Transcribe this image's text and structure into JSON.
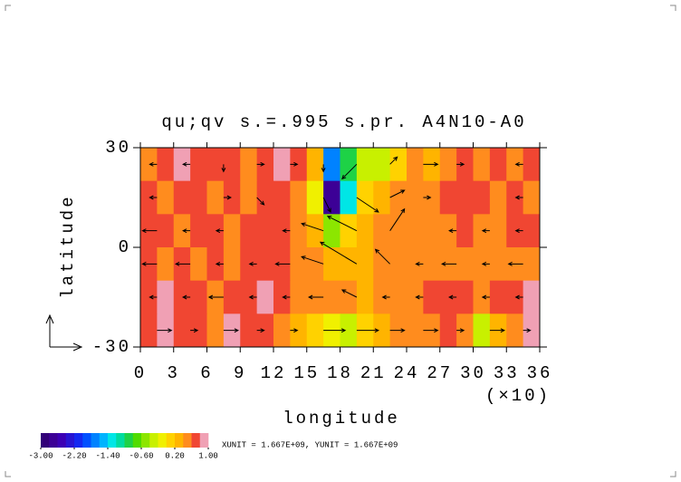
{
  "chart_data": {
    "type": "contour",
    "title": "qu;qv s.=.995 s.pr. A4N10-A0",
    "x_label": "longitude",
    "x_multiplier": "(×10)",
    "y_label": "latitude",
    "note": "XUNIT = 1.667E+09, YUNIT = 1.667E+09",
    "xlim": [
      0,
      36
    ],
    "ylim": [
      -30,
      30
    ],
    "xticks": [
      0,
      3,
      6,
      9,
      12,
      15,
      18,
      21,
      24,
      27,
      30,
      33,
      36
    ],
    "yticks": [
      -30,
      0,
      30
    ],
    "x_edges": [
      0,
      1.5,
      3,
      4.5,
      6,
      7.5,
      9,
      10.5,
      12,
      13.5,
      15,
      16.5,
      18,
      19.5,
      21,
      22.5,
      24,
      25.5,
      27,
      28.5,
      30,
      31.5,
      33,
      34.5,
      36
    ],
    "y_edges": [
      30,
      20,
      10,
      0,
      -10,
      -20,
      -30
    ],
    "z": [
      [
        0.5,
        0.6,
        0.8,
        0.6,
        0.7,
        0.6,
        0.5,
        0.7,
        0.9,
        0.6,
        0.2,
        -1.8,
        -1.0,
        -0.4,
        -0.3,
        0.0,
        0.4,
        0.2,
        0.5,
        0.7,
        0.5,
        0.6,
        0.5,
        0.6
      ],
      [
        0.6,
        0.5,
        0.6,
        0.7,
        0.5,
        0.6,
        0.5,
        0.6,
        0.7,
        0.5,
        -0.2,
        -2.8,
        -1.4,
        0.0,
        0.2,
        0.4,
        0.5,
        0.4,
        0.6,
        0.6,
        0.7,
        0.5,
        0.6,
        0.5
      ],
      [
        0.7,
        0.6,
        0.5,
        0.6,
        0.6,
        0.5,
        0.6,
        0.7,
        0.6,
        0.5,
        0.3,
        -0.6,
        0.1,
        0.2,
        0.4,
        0.5,
        0.5,
        0.4,
        0.5,
        0.6,
        0.5,
        0.5,
        0.6,
        0.6
      ],
      [
        0.6,
        0.5,
        0.6,
        0.5,
        0.6,
        0.5,
        0.6,
        0.7,
        0.6,
        0.5,
        0.4,
        0.3,
        0.2,
        0.3,
        0.4,
        0.5,
        0.5,
        0.5,
        0.4,
        0.5,
        0.5,
        0.4,
        0.5,
        0.5
      ],
      [
        0.7,
        0.8,
        0.6,
        0.6,
        0.5,
        0.6,
        0.7,
        0.8,
        0.6,
        0.4,
        0.5,
        0.5,
        0.4,
        0.3,
        0.4,
        0.5,
        0.5,
        0.6,
        0.7,
        0.6,
        0.5,
        0.7,
        0.6,
        0.8
      ],
      [
        0.6,
        0.9,
        0.7,
        0.6,
        0.5,
        0.8,
        0.6,
        0.7,
        0.5,
        0.3,
        0.0,
        -0.2,
        -0.3,
        0.1,
        0.3,
        0.4,
        0.5,
        0.5,
        0.6,
        0.4,
        -0.3,
        0.3,
        0.5,
        0.9
      ]
    ],
    "levels": [
      -3.0,
      -2.8,
      -2.6,
      -2.4,
      -2.2,
      -2.0,
      -1.8,
      -1.6,
      -1.4,
      -1.2,
      -1.0,
      -0.8,
      -0.6,
      -0.4,
      -0.2,
      0.0,
      0.2,
      0.4,
      0.6,
      0.8,
      1.0
    ],
    "colors": [
      "#320078",
      "#3c0096",
      "#3c00b4",
      "#2814d2",
      "#1428f0",
      "#0050ff",
      "#0082ff",
      "#00b4ff",
      "#00e6e6",
      "#00dca0",
      "#1ed246",
      "#50dc00",
      "#8ce600",
      "#c8f000",
      "#f0f000",
      "#ffd200",
      "#ffb400",
      "#ff8c1e",
      "#f04632",
      "#f0a0b4"
    ],
    "colorbar_ticks": [
      {
        "value": -3.0,
        "label": "-3.00"
      },
      {
        "value": -2.2,
        "label": "-2.20"
      },
      {
        "value": -1.4,
        "label": "-1.40"
      },
      {
        "value": -0.6,
        "label": "-0.60"
      },
      {
        "value": 0.2,
        "label": "0.20"
      },
      {
        "value": 1.0,
        "label": "1.00"
      }
    ],
    "vectors": {
      "x": [
        1.5,
        4.5,
        7.5,
        10.5,
        13.5,
        16.5,
        19.5,
        22.5,
        25.5,
        28.5,
        31.5,
        34.5
      ],
      "y": [
        25,
        15,
        5,
        -5,
        -15,
        -25
      ],
      "u": [
        [
          -1,
          -1,
          0,
          1,
          1,
          0,
          -2,
          1,
          2,
          1,
          0,
          -1
        ],
        [
          -1,
          0,
          1,
          1,
          0,
          1,
          3,
          2,
          1,
          0,
          0,
          -1
        ],
        [
          -2,
          -1,
          -1,
          0,
          -1,
          -3,
          -4,
          2,
          0,
          -1,
          -1,
          -1
        ],
        [
          -2,
          -2,
          -1,
          -1,
          -2,
          -3,
          -5,
          -2,
          -1,
          -2,
          -1,
          -2
        ],
        [
          -1,
          -1,
          -2,
          -1,
          -1,
          -2,
          -2,
          -1,
          -1,
          -1,
          -1,
          -1
        ],
        [
          2,
          1,
          2,
          1,
          1,
          3,
          3,
          2,
          2,
          1,
          2,
          1
        ]
      ],
      "v": [
        [
          0,
          0,
          -1,
          0,
          0,
          -1,
          -2,
          1,
          0,
          0,
          0,
          0
        ],
        [
          0,
          0,
          0,
          -1,
          0,
          -2,
          -2,
          1,
          0,
          0,
          0,
          0
        ],
        [
          0,
          0,
          0,
          0,
          0,
          1,
          2,
          3,
          0,
          0,
          0,
          0
        ],
        [
          0,
          0,
          0,
          0,
          0,
          1,
          3,
          2,
          0,
          0,
          0,
          0
        ],
        [
          0,
          0,
          0,
          0,
          0,
          0,
          1,
          0,
          0,
          0,
          0,
          0
        ],
        [
          0,
          0,
          0,
          0,
          0,
          0,
          0,
          0,
          0,
          0,
          0,
          0
        ]
      ],
      "color": "#000000"
    }
  }
}
